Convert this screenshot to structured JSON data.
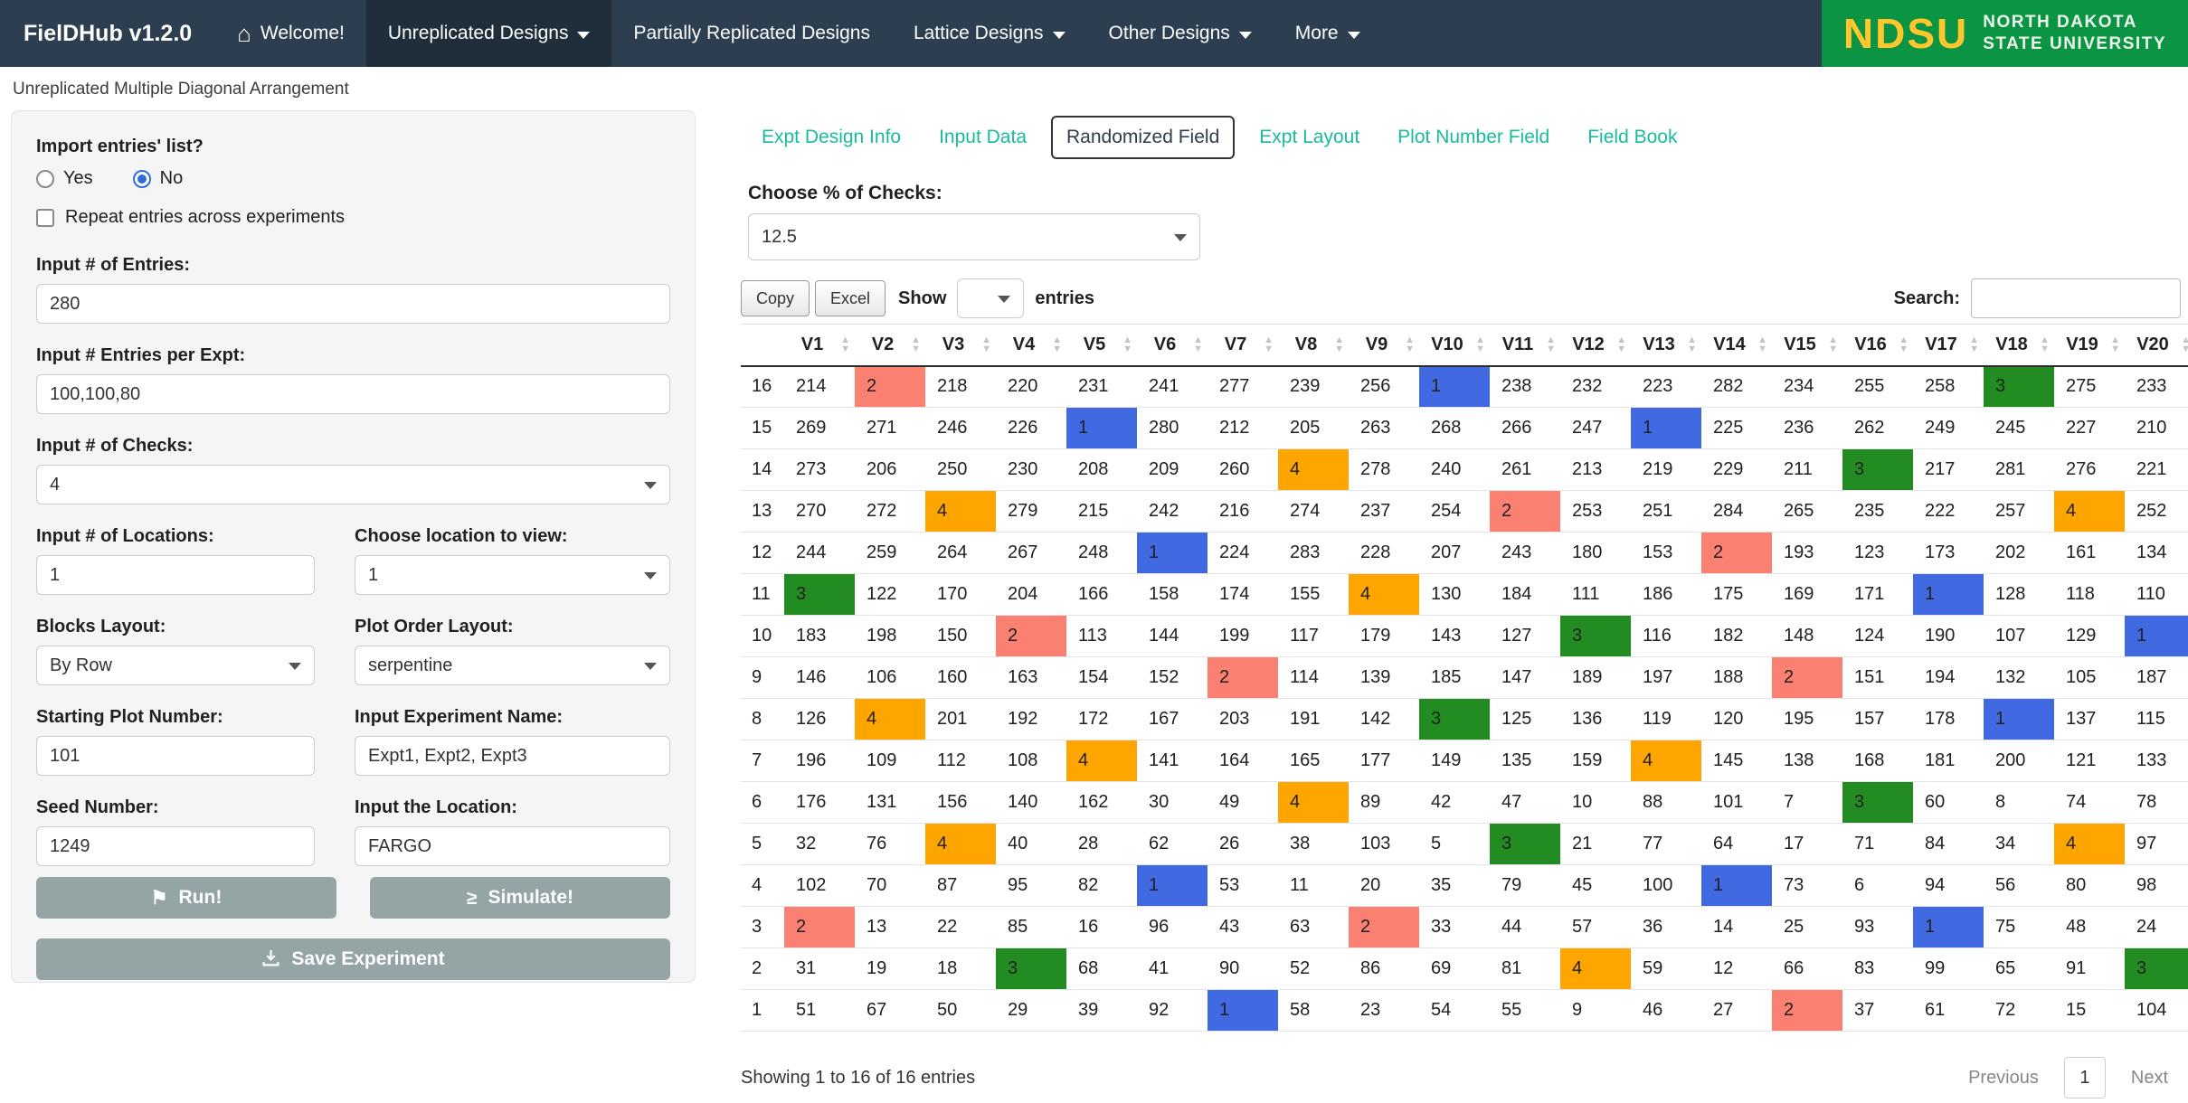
{
  "navbar": {
    "brand": "FielDHub v1.2.0",
    "items": [
      "Welcome!",
      "Unreplicated Designs",
      "Partially Replicated Designs",
      "Lattice Designs",
      "Other Designs",
      "More"
    ],
    "logo": {
      "acronym": "NDSU",
      "line1": "NORTH DAKOTA",
      "line2": "STATE UNIVERSITY",
      "green": "#0b9444",
      "yellow": "#ffc72c"
    }
  },
  "icons": {
    "home": "⌂",
    "run_flag": "⚑",
    "simulate_gte": "≥",
    "sort_asc": "▲",
    "sort_desc": "▼"
  },
  "page_title": "Unreplicated Multiple Diagonal Arrangement",
  "sidebar": {
    "import_label": "Import entries' list?",
    "radio_yes": "Yes",
    "radio_no": "No",
    "radio_selected": "No",
    "repeat_checkbox_label": "Repeat entries across experiments",
    "entries_label": "Input # of Entries:",
    "entries_value": "280",
    "entries_per_expt_label": "Input # Entries per Expt:",
    "entries_per_expt_value": "100,100,80",
    "checks_label": "Input # of Checks:",
    "checks_value": "4",
    "locations_label": "Input # of Locations:",
    "locations_value": "1",
    "location_view_label": "Choose location to view:",
    "location_view_value": "1",
    "blocks_layout_label": "Blocks Layout:",
    "blocks_layout_value": "By Row",
    "plot_order_label": "Plot Order Layout:",
    "plot_order_value": "serpentine",
    "starting_plot_label": "Starting Plot Number:",
    "starting_plot_value": "101",
    "expt_name_label": "Input Experiment Name:",
    "expt_name_value": "Expt1, Expt2, Expt3",
    "seed_label": "Seed Number:",
    "seed_value": "1249",
    "location_label": "Input the Location:",
    "location_value": "FARGO",
    "run_button": "Run!",
    "simulate_button": "Simulate!",
    "save_button": "Save Experiment"
  },
  "main": {
    "tabs": [
      "Expt Design Info",
      "Input Data",
      "Randomized Field",
      "Expt Layout",
      "Plot Number Field",
      "Field Book"
    ],
    "active_tab": "Randomized Field",
    "checks_pct_label": "Choose % of Checks:",
    "checks_pct_value": "12.5",
    "controls": {
      "copy": "Copy",
      "excel": "Excel",
      "show": "Show",
      "show_value": "",
      "entries": "entries",
      "search": "Search:",
      "search_value": ""
    },
    "footer": {
      "info": "Showing 1 to 16 of 16 entries",
      "previous": "Previous",
      "page": "1",
      "next": "Next"
    }
  },
  "table": {
    "columns": [
      "V1",
      "V2",
      "V3",
      "V4",
      "V5",
      "V6",
      "V7",
      "V8",
      "V9",
      "V10",
      "V11",
      "V12",
      "V13",
      "V14",
      "V15",
      "V16",
      "V17",
      "V18",
      "V19",
      "V20"
    ],
    "check_colors": {
      "b": "#4169e1",
      "s": "#fa8072",
      "g": "#228b22",
      "o": "#ffa500"
    },
    "rows": [
      {
        "label": "16",
        "cells": [
          214,
          "2:s",
          218,
          220,
          231,
          241,
          277,
          239,
          256,
          "1:b",
          238,
          232,
          223,
          282,
          234,
          255,
          258,
          "3:g",
          275,
          233
        ]
      },
      {
        "label": "15",
        "cells": [
          269,
          271,
          246,
          226,
          "1:b",
          280,
          212,
          205,
          263,
          268,
          266,
          247,
          "1:b",
          225,
          236,
          262,
          249,
          245,
          227,
          210
        ]
      },
      {
        "label": "14",
        "cells": [
          273,
          206,
          250,
          230,
          208,
          209,
          260,
          "4:o",
          278,
          240,
          261,
          213,
          219,
          229,
          211,
          "3:g",
          217,
          281,
          276,
          221
        ]
      },
      {
        "label": "13",
        "cells": [
          270,
          272,
          "4:o",
          279,
          215,
          242,
          216,
          274,
          237,
          254,
          "2:s",
          253,
          251,
          284,
          265,
          235,
          222,
          257,
          "4:o",
          252
        ]
      },
      {
        "label": "12",
        "cells": [
          244,
          259,
          264,
          267,
          248,
          "1:b",
          224,
          283,
          228,
          207,
          243,
          180,
          153,
          "2:s",
          193,
          123,
          173,
          202,
          161,
          134
        ]
      },
      {
        "label": "11",
        "cells": [
          "3:g",
          122,
          170,
          204,
          166,
          158,
          174,
          155,
          "4:o",
          130,
          184,
          111,
          186,
          175,
          169,
          171,
          "1:b",
          128,
          118,
          110
        ]
      },
      {
        "label": "10",
        "cells": [
          183,
          198,
          150,
          "2:s",
          113,
          144,
          199,
          117,
          179,
          143,
          127,
          "3:g",
          116,
          182,
          148,
          124,
          190,
          107,
          129,
          "1:b"
        ]
      },
      {
        "label": "9",
        "cells": [
          146,
          106,
          160,
          163,
          154,
          152,
          "2:s",
          114,
          139,
          185,
          147,
          189,
          197,
          188,
          "2:s",
          151,
          194,
          132,
          105,
          187
        ]
      },
      {
        "label": "8",
        "cells": [
          126,
          "4:o",
          201,
          192,
          172,
          167,
          203,
          191,
          142,
          "3:g",
          125,
          136,
          119,
          120,
          195,
          157,
          178,
          "1:b",
          137,
          115
        ]
      },
      {
        "label": "7",
        "cells": [
          196,
          109,
          112,
          108,
          "4:o",
          141,
          164,
          165,
          177,
          149,
          135,
          159,
          "4:o",
          145,
          138,
          168,
          181,
          200,
          121,
          133
        ]
      },
      {
        "label": "6",
        "cells": [
          176,
          131,
          156,
          140,
          162,
          30,
          49,
          "4:o",
          89,
          42,
          47,
          10,
          88,
          101,
          7,
          "3:g",
          60,
          8,
          74,
          78
        ]
      },
      {
        "label": "5",
        "cells": [
          32,
          76,
          "4:o",
          40,
          28,
          62,
          26,
          38,
          103,
          5,
          "3:g",
          21,
          77,
          64,
          17,
          71,
          84,
          34,
          "4:o",
          97
        ]
      },
      {
        "label": "4",
        "cells": [
          102,
          70,
          87,
          95,
          82,
          "1:b",
          53,
          11,
          20,
          35,
          79,
          45,
          100,
          "1:b",
          73,
          6,
          94,
          56,
          80,
          98
        ]
      },
      {
        "label": "3",
        "cells": [
          "2:s",
          13,
          22,
          85,
          16,
          96,
          43,
          63,
          "2:s",
          33,
          44,
          57,
          36,
          14,
          25,
          93,
          "1:b",
          75,
          48,
          24
        ]
      },
      {
        "label": "2",
        "cells": [
          31,
          19,
          18,
          "3:g",
          68,
          41,
          90,
          52,
          86,
          69,
          81,
          "4:o",
          59,
          12,
          66,
          83,
          99,
          65,
          91,
          "3:g"
        ]
      },
      {
        "label": "1",
        "cells": [
          51,
          67,
          50,
          29,
          39,
          92,
          "1:b",
          58,
          23,
          54,
          55,
          9,
          46,
          27,
          "2:s",
          37,
          61,
          72,
          15,
          104
        ]
      }
    ]
  }
}
